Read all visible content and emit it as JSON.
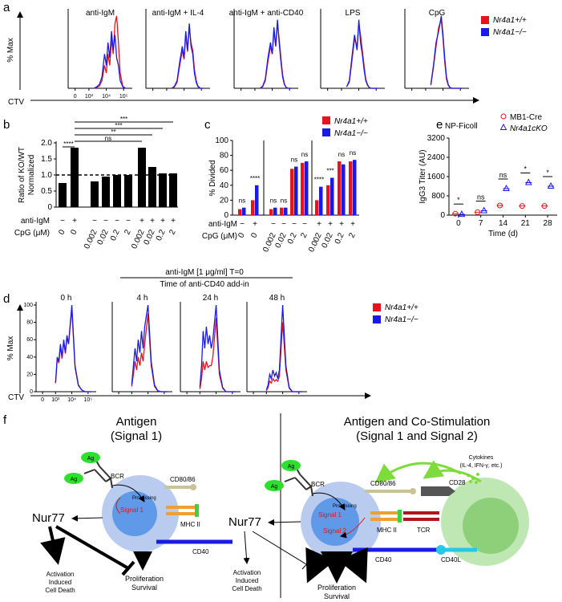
{
  "panel_a": {
    "label": "a",
    "ylabel": "% Max",
    "xlabel": "CTV",
    "xlim": [
      1.8,
      5.5
    ],
    "ylim": [
      0,
      100
    ],
    "xticks": [
      {
        "value": 2.2,
        "label": "0"
      },
      {
        "value": 3,
        "label": "10³"
      },
      {
        "value": 4,
        "label": "10⁴"
      },
      {
        "value": 5,
        "label": "10⁵"
      }
    ],
    "x": [
      3.3,
      3.45,
      3.6,
      3.75,
      3.9,
      4.0,
      4.1,
      4.2,
      4.3,
      4.4,
      4.5,
      4.6,
      4.7,
      4.8,
      4.95,
      5.1
    ],
    "legend": [
      {
        "name": "Nr4a1+/+",
        "color": "#e8141b"
      },
      {
        "name": "Nr4a1−/−",
        "color": "#1a1ae6"
      }
    ],
    "panels": [
      {
        "title": "anti-IgM",
        "series": [
          {
            "values": [
              0,
              1,
              3,
              10,
              30,
              20,
              45,
              30,
              65,
              45,
              85,
              95,
              60,
              20,
              3,
              0
            ]
          },
          {
            "values": [
              0,
              2,
              5,
              15,
              45,
              30,
              60,
              40,
              75,
              50,
              70,
              40,
              30,
              10,
              2,
              0
            ]
          }
        ]
      },
      {
        "title": "anti-IgM + IL-4",
        "series": [
          {
            "values": [
              0,
              2,
              8,
              30,
              50,
              38,
              70,
              48,
              80,
              60,
              50,
              25,
              10,
              3,
              0,
              0
            ]
          },
          {
            "values": [
              0,
              3,
              10,
              35,
              55,
              40,
              75,
              50,
              85,
              55,
              45,
              20,
              8,
              2,
              0,
              0
            ]
          }
        ]
      },
      {
        "title": "anti-IgM + anti-CD40",
        "series": [
          {
            "values": [
              0,
              2,
              10,
              35,
              55,
              45,
              75,
              55,
              85,
              65,
              40,
              18,
              6,
              1,
              0,
              0
            ]
          },
          {
            "values": [
              0,
              3,
              12,
              40,
              60,
              45,
              80,
              55,
              90,
              60,
              35,
              15,
              5,
              1,
              0,
              0
            ]
          }
        ]
      },
      {
        "title": "LPS",
        "series": [
          {
            "values": [
              2,
              8,
              35,
              65,
              55,
              85,
              70,
              50,
              30,
              12,
              5,
              1,
              0,
              0,
              0,
              0
            ]
          },
          {
            "values": [
              2,
              10,
              40,
              70,
              50,
              90,
              60,
              45,
              25,
              10,
              4,
              1,
              0,
              0,
              0,
              0
            ]
          }
        ]
      },
      {
        "title": "CpG",
        "series": [
          {
            "values": [
              4,
              28,
              55,
              80,
              90,
              65,
              35,
              12,
              4,
              1,
              0,
              0,
              0,
              0,
              0,
              0
            ]
          },
          {
            "values": [
              5,
              30,
              60,
              75,
              95,
              70,
              40,
              15,
              5,
              1,
              0,
              0,
              0,
              0,
              0,
              0
            ]
          }
        ]
      }
    ]
  },
  "panel_b": {
    "label": "b",
    "ylabel": [
      "Ratio of KO/WT",
      "Normalized"
    ],
    "ylim": [
      0,
      2
    ],
    "yticks": [
      0,
      0.5,
      {
        "value": 1,
        "label": "1.0"
      },
      1.5,
      {
        "value": 2,
        "label": "2.0"
      }
    ],
    "reference": 1,
    "color": "#000000",
    "values": [
      0.75,
      1.85,
      0.8,
      0.95,
      1.0,
      1.0,
      1.85,
      1.25,
      1.05,
      1.05
    ],
    "row_labels": [
      "anti-IgM",
      "CpG (μM)"
    ],
    "anti_igm": [
      "−",
      "+",
      "−",
      "−",
      "−",
      "−",
      "+",
      "+",
      "+",
      "+"
    ],
    "cpg": [
      "0",
      "0",
      "0.002",
      "0.02",
      "0.2",
      "2",
      "0.002",
      "0.02",
      "0.2",
      "2"
    ],
    "annotations": [
      "****",
      "***",
      "***",
      "**",
      "ns"
    ]
  },
  "panel_c": {
    "label": "c",
    "ylabel": "% Divided",
    "ylim": [
      0,
      100
    ],
    "yticks": [
      0,
      20,
      40,
      60,
      80,
      100
    ],
    "series": [
      {
        "name": "Nr4a1+/+",
        "color": "#e8141b",
        "values": [
          8,
          20,
          8,
          10,
          62,
          70,
          20,
          40,
          72,
          72
        ]
      },
      {
        "name": "Nr4a1−/−",
        "color": "#1a1ae6",
        "values": [
          10,
          40,
          10,
          10,
          65,
          72,
          38,
          50,
          68,
          74
        ]
      }
    ],
    "row_labels": [
      "anti-IgM",
      "CpG (μM)"
    ],
    "anti_igm": [
      "−",
      "+",
      "−",
      "−",
      "−",
      "−",
      "+",
      "+",
      "+",
      "+"
    ],
    "cpg": [
      "0",
      "0",
      "0.002",
      "0.02",
      "0.2",
      "2",
      "0.002",
      "0.02",
      "0.2",
      "2"
    ],
    "annotations": [
      "ns",
      "****",
      "ns",
      "ns",
      "ns",
      "ns",
      "****",
      "***",
      "ns",
      "ns"
    ]
  },
  "panel_e": {
    "label": "e",
    "legend_title": "NP-Ficoll",
    "ylabel": "IgG3  Titer (AU)",
    "xlabel": "Time (d)",
    "x": [
      0,
      7,
      14,
      21,
      28
    ],
    "xlim": [
      -3,
      31
    ],
    "xticks": [
      0,
      7,
      14,
      21,
      28
    ],
    "ylim": [
      0,
      3200
    ],
    "yticks": [
      0,
      800,
      1600,
      2400,
      3200
    ],
    "series": [
      {
        "name": "MB1-Cre",
        "color": "#e8141b",
        "marker": "circle",
        "values": [
          60,
          120,
          400,
          380,
          380
        ]
      },
      {
        "name": "Nr4a1cKO",
        "color": "#1a1ae6",
        "marker": "triangle",
        "values": [
          30,
          180,
          1100,
          1350,
          1200
        ]
      }
    ],
    "annotations": [
      "*",
      "ns",
      "ns",
      "*",
      "*"
    ]
  },
  "panel_d": {
    "label": "d",
    "header": [
      "anti-IgM [1 μg/ml] T=0",
      "Time of anti-CD40 add-in"
    ],
    "ylabel": "% Max",
    "xlabel": "CTV",
    "xlim": [
      1.8,
      5.5
    ],
    "ylim": [
      0,
      100
    ],
    "yticks": [
      0,
      20,
      40,
      60,
      80,
      100
    ],
    "xticks": [
      {
        "value": 2.2,
        "label": "0"
      },
      {
        "value": 3,
        "label": "10³"
      },
      {
        "value": 4,
        "label": "10⁴"
      },
      {
        "value": 5,
        "label": "10⁵"
      }
    ],
    "x": [
      3.0,
      3.1,
      3.2,
      3.3,
      3.4,
      3.5,
      3.6,
      3.7,
      3.8,
      4.0,
      4.2,
      4.4,
      4.6,
      4.8,
      5.0,
      5.2
    ],
    "legend": [
      {
        "name": "Nr4a1+/+",
        "color": "#e8141b"
      },
      {
        "name": "Nr4a1−/−",
        "color": "#1a1ae6"
      }
    ],
    "panels": [
      {
        "title": "0 h",
        "series": [
          {
            "values": [
              10,
              38,
              33,
              52,
              38,
              58,
              44,
              62,
              55,
              95,
              28,
              7,
              2,
              0,
              0,
              0
            ]
          },
          {
            "values": [
              10,
              40,
              35,
              55,
              40,
              60,
              45,
              65,
              55,
              100,
              30,
              8,
              2,
              0,
              0,
              0
            ]
          }
        ]
      },
      {
        "title": "4 h",
        "series": [
          {
            "values": [
              6,
              20,
              35,
              25,
              40,
              30,
              45,
              35,
              55,
              90,
              30,
              6,
              1,
              0,
              0,
              0
            ]
          },
          {
            "values": [
              8,
              30,
              50,
              35,
              60,
              45,
              70,
              50,
              75,
              100,
              35,
              8,
              1,
              0,
              0,
              0
            ]
          }
        ]
      },
      {
        "title": "24 h",
        "series": [
          {
            "values": [
              3,
              15,
              35,
              25,
              35,
              28,
              30,
              30,
              40,
              85,
              20,
              4,
              0,
              0,
              0,
              0
            ]
          },
          {
            "values": [
              5,
              30,
              70,
              50,
              75,
              55,
              65,
              50,
              60,
              100,
              25,
              5,
              0,
              0,
              0,
              0
            ]
          }
        ]
      },
      {
        "title": "48 h",
        "series": [
          {
            "values": [
              1,
              5,
              12,
              10,
              15,
              12,
              14,
              12,
              18,
              80,
              25,
              4,
              0,
              0,
              0,
              0
            ]
          },
          {
            "values": [
              2,
              8,
              20,
              15,
              25,
              18,
              22,
              15,
              25,
              100,
              30,
              5,
              0,
              0,
              0,
              0
            ]
          }
        ]
      }
    ]
  },
  "panel_f": {
    "label": "f",
    "left": {
      "title": [
        "Antigen",
        "(Signal 1)"
      ],
      "ag": [
        "Ag",
        "Ag"
      ],
      "bcr": "BCR",
      "cd80": "CD80/86",
      "processing": "Processing",
      "signal1": "Signal 1",
      "mhc": "MHC II",
      "cd40": "CD40",
      "nur77": "Nur77",
      "death": [
        "Activation",
        "Induced",
        "Cell Death"
      ],
      "survival": [
        "Proliferation",
        "Survival"
      ]
    },
    "right": {
      "title": [
        "Antigen and Co-Stimulation",
        "(Signal 1 and Signal 2)"
      ],
      "ag": [
        "Ag",
        "Ag"
      ],
      "bcr": "BCR",
      "cd80": "CD80/86",
      "processing": "Processing",
      "signal1": "Signal 1",
      "signal2": "Signal 2",
      "mhc": "MHC II",
      "cd40": "CD40",
      "nur77": "Nur77",
      "death": [
        "Activation",
        "Induced",
        "Cell Death"
      ],
      "survival": [
        "Proliferation",
        "Survival"
      ],
      "cytokines": [
        "Cytokines",
        "(IL-4, IFN-γ, etc.)"
      ],
      "cd28": "CD28",
      "tcr": "TCR",
      "cd40l": "CD40L"
    }
  }
}
